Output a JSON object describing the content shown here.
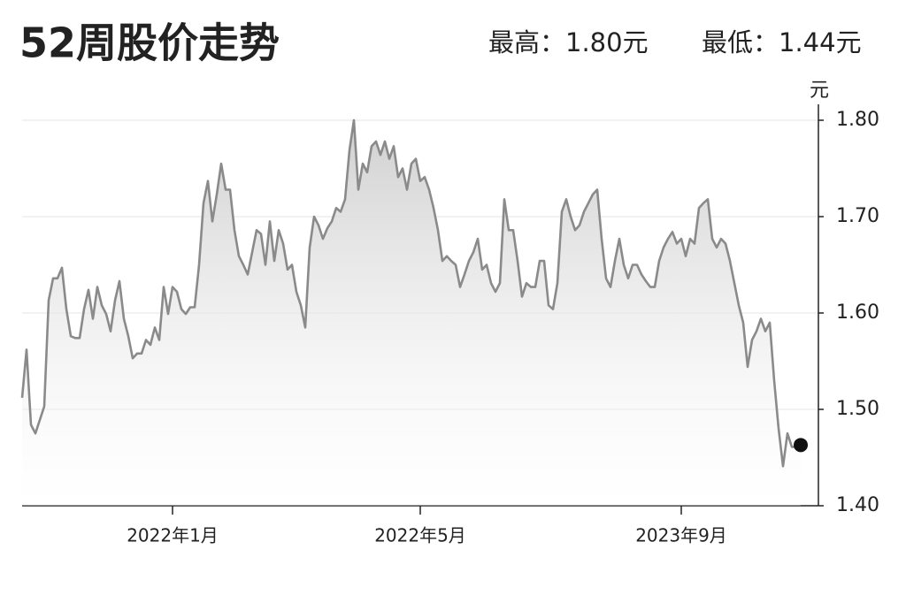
{
  "chart_data": {
    "type": "line",
    "title": "52周股价走势",
    "annotations": [
      "最高：1.80元",
      "最低：1.44元"
    ],
    "ylabel": "元",
    "categories": [
      null,
      null,
      null,
      null,
      null,
      null,
      null,
      null,
      null,
      null,
      null,
      null,
      null,
      null,
      null,
      null,
      null,
      null,
      null,
      null,
      null,
      null,
      null,
      null,
      null,
      null,
      null,
      null,
      null,
      null,
      null,
      null,
      null,
      null,
      "2022年1月",
      null,
      null,
      null,
      null,
      null,
      null,
      null,
      null,
      null,
      null,
      null,
      null,
      null,
      null,
      null,
      null,
      null,
      null,
      null,
      null,
      null,
      null,
      null,
      null,
      null,
      null,
      null,
      null,
      null,
      null,
      null,
      null,
      null,
      null,
      null,
      null,
      null,
      null,
      null,
      null,
      null,
      null,
      null,
      null,
      null,
      null,
      null,
      null,
      null,
      null,
      null,
      null,
      null,
      null,
      null,
      "2022年5月",
      null,
      null,
      null,
      null,
      null,
      null,
      null,
      null,
      null,
      null,
      null,
      null,
      null,
      null,
      null,
      null,
      null,
      null,
      null,
      null,
      null,
      null,
      null,
      null,
      null,
      null,
      null,
      null,
      null,
      null,
      null,
      null,
      null,
      null,
      null,
      null,
      null,
      null,
      null,
      null,
      null,
      null,
      null,
      null,
      null,
      null,
      null,
      null,
      null,
      null,
      null,
      null,
      null,
      null,
      null,
      null,
      null,
      null,
      "2023年9月",
      null,
      null,
      null,
      null,
      null,
      null,
      null,
      null,
      null,
      null,
      null,
      null,
      null,
      null,
      null,
      null,
      null,
      null,
      null,
      null,
      null,
      null,
      null,
      null,
      null,
      null,
      null
    ],
    "values": [
      1.512,
      1.562,
      1.484,
      1.475,
      1.489,
      1.503,
      1.613,
      1.636,
      1.636,
      1.647,
      1.604,
      1.576,
      1.574,
      1.574,
      1.604,
      1.624,
      1.594,
      1.627,
      1.608,
      1.599,
      1.581,
      1.613,
      1.633,
      1.594,
      1.576,
      1.553,
      1.558,
      1.558,
      1.572,
      1.567,
      1.585,
      1.572,
      1.627,
      1.599,
      1.627,
      1.622,
      1.604,
      1.599,
      1.606,
      1.606,
      1.65,
      1.714,
      1.737,
      1.695,
      1.723,
      1.755,
      1.728,
      1.728,
      1.686,
      1.659,
      1.65,
      1.64,
      1.663,
      1.686,
      1.682,
      1.65,
      1.695,
      1.654,
      1.686,
      1.672,
      1.645,
      1.65,
      1.622,
      1.608,
      1.585,
      1.668,
      1.7,
      1.691,
      1.677,
      1.688,
      1.695,
      1.709,
      1.705,
      1.718,
      1.769,
      1.8,
      1.728,
      1.755,
      1.746,
      1.773,
      1.778,
      1.764,
      1.778,
      1.76,
      1.773,
      1.741,
      1.75,
      1.728,
      1.755,
      1.76,
      1.737,
      1.741,
      1.728,
      1.709,
      1.686,
      1.654,
      1.659,
      1.654,
      1.65,
      1.627,
      1.64,
      1.654,
      1.663,
      1.677,
      1.645,
      1.65,
      1.631,
      1.622,
      1.631,
      1.718,
      1.686,
      1.686,
      1.654,
      1.617,
      1.631,
      1.627,
      1.627,
      1.654,
      1.654,
      1.608,
      1.604,
      1.631,
      1.705,
      1.718,
      1.7,
      1.686,
      1.691,
      1.705,
      1.714,
      1.723,
      1.728,
      1.677,
      1.636,
      1.627,
      1.654,
      1.677,
      1.65,
      1.636,
      1.65,
      1.65,
      1.64,
      1.633,
      1.627,
      1.627,
      1.654,
      1.668,
      1.677,
      1.684,
      1.672,
      1.677,
      1.659,
      1.677,
      1.672,
      1.709,
      1.714,
      1.718,
      1.677,
      1.668,
      1.677,
      1.672,
      1.654,
      1.631,
      1.608,
      1.59,
      1.544,
      1.572,
      1.581,
      1.594,
      1.581,
      1.59,
      1.53,
      1.48,
      1.441,
      1.475,
      1.461,
      1.461,
      1.463
    ],
    "color": "#8a8a8a",
    "ylim": [
      1.4,
      1.8
    ],
    "yticks": [
      {
        "value": 1.4,
        "label": "1.40"
      },
      {
        "value": 1.5,
        "label": "1.50"
      },
      {
        "value": 1.6,
        "label": "1.60"
      },
      {
        "value": 1.7,
        "label": "1.70"
      },
      {
        "value": 1.8,
        "label": "1.80"
      }
    ],
    "grid": true
  }
}
